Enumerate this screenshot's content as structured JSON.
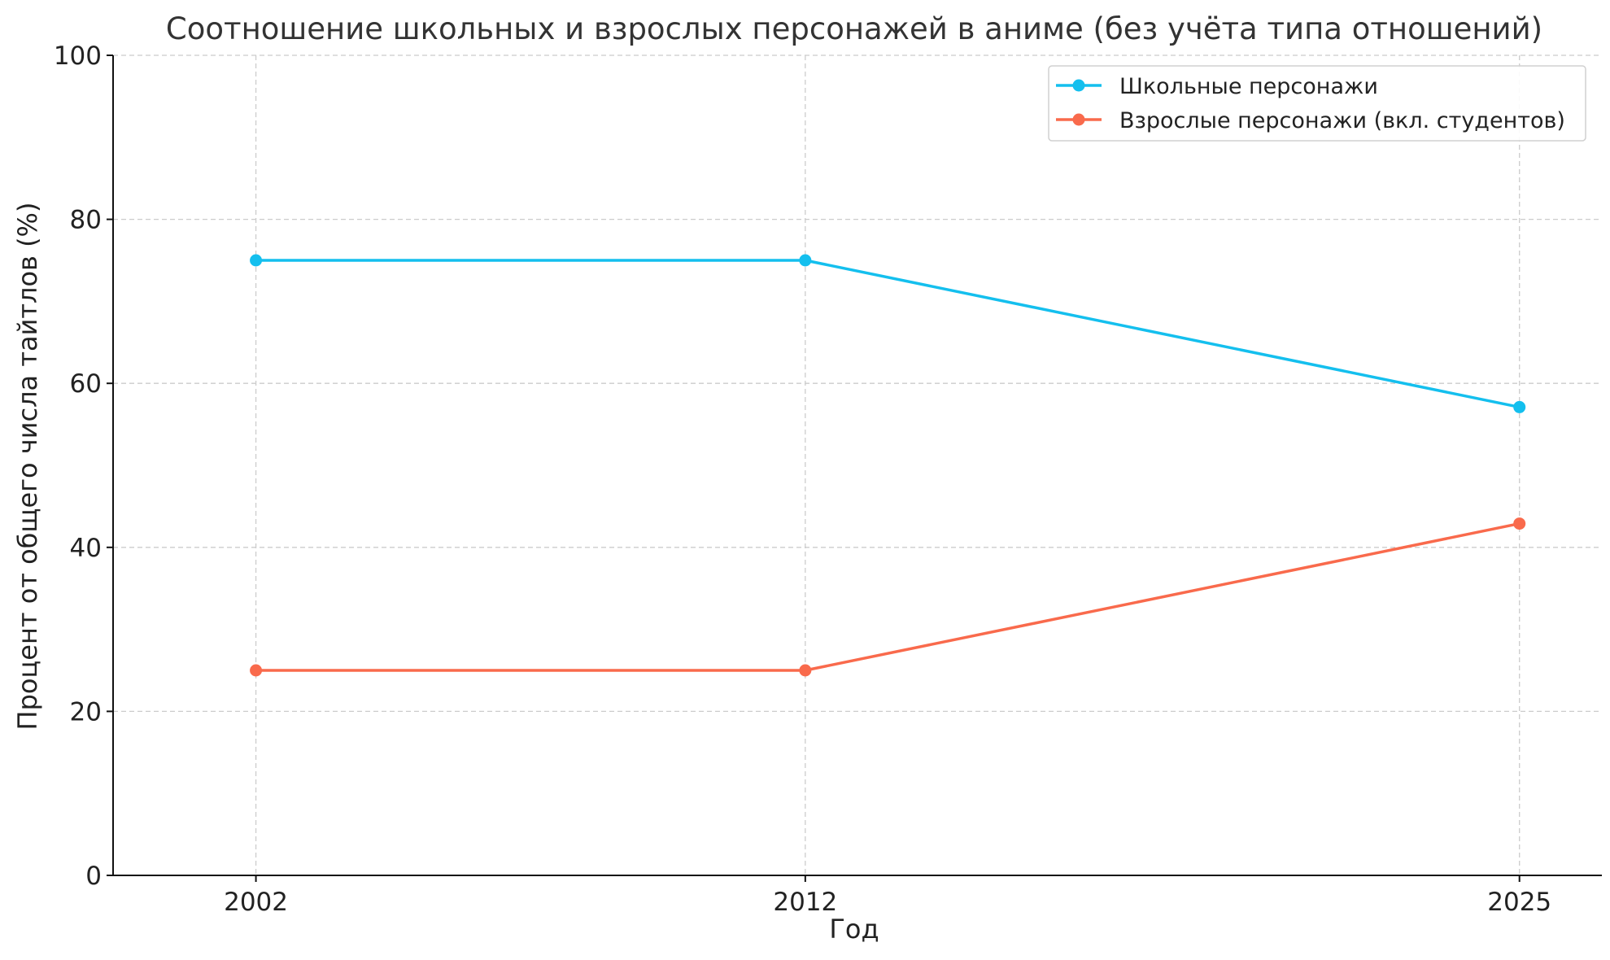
{
  "chart_data": {
    "type": "line",
    "title": "Соотношение школьных и взрослых персонажей в аниме (без учёта типа отношений)",
    "xlabel": "Год",
    "ylabel": "Процент от общего числа тайтлов (%)",
    "x": [
      2002,
      2012,
      2025
    ],
    "x_tick_labels": [
      "2002",
      "2012",
      "2025"
    ],
    "xlim": [
      1999.4,
      2026.5
    ],
    "ylim": [
      0,
      100
    ],
    "y_ticks": [
      0,
      20,
      40,
      60,
      80,
      100
    ],
    "y_tick_labels": [
      "0",
      "20",
      "40",
      "60",
      "80",
      "100"
    ],
    "grid": true,
    "legend_position": "top-right",
    "series": [
      {
        "name": "Школьные персонажи",
        "color": "#14bfee",
        "values": [
          75,
          75,
          57.1
        ]
      },
      {
        "name": "Взрослые персонажи (вкл. студентов)",
        "color": "#f96a4c",
        "values": [
          25,
          25,
          42.9
        ]
      }
    ]
  }
}
